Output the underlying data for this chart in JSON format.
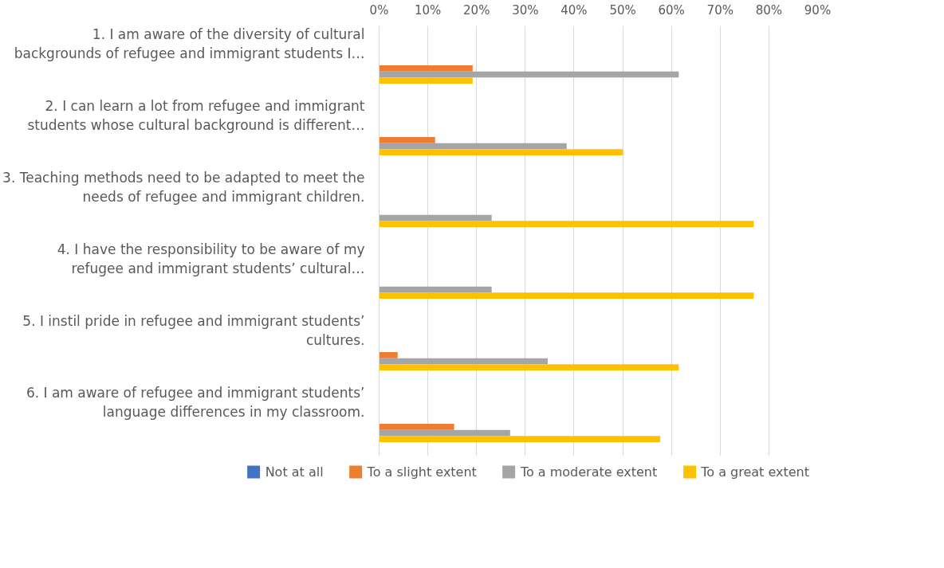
{
  "chart_data": {
    "type": "bar",
    "orientation": "horizontal",
    "categories": [
      "1. I am aware of the diversity of cultural backgrounds of refugee and immigrant students I…",
      "2. I can learn a lot from refugee and immigrant students whose cultural background is different…",
      "3. Teaching methods need to be adapted to meet the needs of refugee and immigrant children.",
      "4. I have the responsibility to be aware of my refugee and immigrant students’ cultural…",
      "5. I instil pride in refugee and immigrant students’ cultures.",
      "6. I am aware of refugee and immigrant students’ language differences in my classroom."
    ],
    "series": [
      {
        "name": "Not at all",
        "color": "#4472c4",
        "values": [
          0,
          0,
          0,
          0,
          0,
          0
        ]
      },
      {
        "name": "To a slight extent",
        "color": "#ed7d31",
        "values": [
          19.2,
          11.5,
          0,
          0,
          3.8,
          15.4
        ]
      },
      {
        "name": "To a moderate extent",
        "color": "#a5a5a5",
        "values": [
          61.5,
          38.5,
          23.1,
          23.1,
          34.6,
          26.9
        ]
      },
      {
        "name": "To a great extent",
        "color": "#ffc000",
        "values": [
          19.2,
          50,
          76.9,
          76.9,
          61.5,
          57.7
        ]
      }
    ],
    "xlim": [
      0,
      90
    ],
    "xticks": [
      {
        "value": 0,
        "label": "0%"
      },
      {
        "value": 10,
        "label": "10%"
      },
      {
        "value": 20,
        "label": "20%"
      },
      {
        "value": 30,
        "label": "30%"
      },
      {
        "value": 40,
        "label": "40%"
      },
      {
        "value": 50,
        "label": "50%"
      },
      {
        "value": 60,
        "label": "60%"
      },
      {
        "value": 70,
        "label": "70%"
      },
      {
        "value": 80,
        "label": "80%"
      },
      {
        "value": 90,
        "label": "90%"
      }
    ],
    "grid": "x",
    "legend": "bottom"
  }
}
